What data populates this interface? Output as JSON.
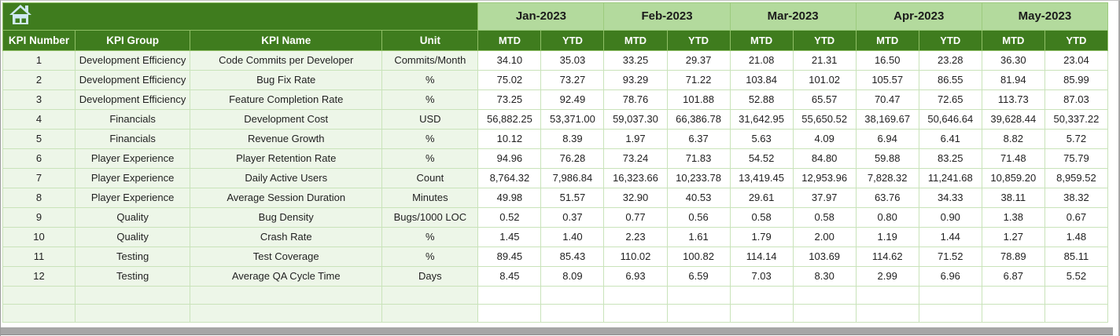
{
  "table": {
    "fixed_headers": [
      "KPI Number",
      "KPI Group",
      "KPI Name",
      "Unit"
    ],
    "month_groups": [
      "Jan-2023",
      "Feb-2023",
      "Mar-2023",
      "Apr-2023",
      "May-2023"
    ],
    "sub_headers": [
      "MTD",
      "YTD"
    ],
    "rows": [
      {
        "kpi_number": "1",
        "kpi_group": "Development Efficiency",
        "kpi_name": "Code Commits per Developer",
        "unit": "Commits/Month",
        "values": [
          "34.10",
          "35.03",
          "33.25",
          "29.37",
          "21.08",
          "21.31",
          "16.50",
          "23.28",
          "36.30",
          "23.04"
        ]
      },
      {
        "kpi_number": "2",
        "kpi_group": "Development Efficiency",
        "kpi_name": "Bug Fix Rate",
        "unit": "%",
        "values": [
          "75.02",
          "73.27",
          "93.29",
          "71.22",
          "103.84",
          "101.02",
          "105.57",
          "86.55",
          "81.94",
          "85.99"
        ]
      },
      {
        "kpi_number": "3",
        "kpi_group": "Development Efficiency",
        "kpi_name": "Feature Completion Rate",
        "unit": "%",
        "values": [
          "73.25",
          "92.49",
          "78.76",
          "101.88",
          "52.88",
          "65.57",
          "70.47",
          "72.65",
          "113.73",
          "87.03"
        ]
      },
      {
        "kpi_number": "4",
        "kpi_group": "Financials",
        "kpi_name": "Development Cost",
        "unit": "USD",
        "values": [
          "56,882.25",
          "53,371.00",
          "59,037.30",
          "66,386.78",
          "31,642.95",
          "55,650.52",
          "38,169.67",
          "50,646.64",
          "39,628.44",
          "50,337.22"
        ]
      },
      {
        "kpi_number": "5",
        "kpi_group": "Financials",
        "kpi_name": "Revenue Growth",
        "unit": "%",
        "values": [
          "10.12",
          "8.39",
          "1.97",
          "6.37",
          "5.63",
          "4.09",
          "6.94",
          "6.41",
          "8.82",
          "5.72"
        ]
      },
      {
        "kpi_number": "6",
        "kpi_group": "Player Experience",
        "kpi_name": "Player Retention Rate",
        "unit": "%",
        "values": [
          "94.96",
          "76.28",
          "73.24",
          "71.83",
          "54.52",
          "84.80",
          "59.88",
          "83.25",
          "71.48",
          "75.79"
        ]
      },
      {
        "kpi_number": "7",
        "kpi_group": "Player Experience",
        "kpi_name": "Daily Active Users",
        "unit": "Count",
        "values": [
          "8,764.32",
          "7,986.84",
          "16,323.66",
          "10,233.78",
          "13,419.45",
          "12,953.96",
          "7,828.32",
          "11,241.68",
          "10,859.20",
          "8,959.52"
        ]
      },
      {
        "kpi_number": "8",
        "kpi_group": "Player Experience",
        "kpi_name": "Average Session Duration",
        "unit": "Minutes",
        "values": [
          "49.98",
          "51.57",
          "32.90",
          "40.53",
          "29.61",
          "37.97",
          "63.76",
          "34.33",
          "38.11",
          "38.32"
        ]
      },
      {
        "kpi_number": "9",
        "kpi_group": "Quality",
        "kpi_name": "Bug Density",
        "unit": "Bugs/1000 LOC",
        "values": [
          "0.52",
          "0.37",
          "0.77",
          "0.56",
          "0.58",
          "0.58",
          "0.80",
          "0.90",
          "1.38",
          "0.67"
        ]
      },
      {
        "kpi_number": "10",
        "kpi_group": "Quality",
        "kpi_name": "Crash Rate",
        "unit": "%",
        "values": [
          "1.45",
          "1.40",
          "2.23",
          "1.61",
          "1.79",
          "2.00",
          "1.19",
          "1.44",
          "1.27",
          "1.48"
        ]
      },
      {
        "kpi_number": "11",
        "kpi_group": "Testing",
        "kpi_name": "Test Coverage",
        "unit": "%",
        "values": [
          "89.45",
          "85.43",
          "110.02",
          "100.82",
          "114.14",
          "103.69",
          "114.62",
          "71.52",
          "78.89",
          "85.11"
        ]
      },
      {
        "kpi_number": "12",
        "kpi_group": "Testing",
        "kpi_name": "Average QA Cycle Time",
        "unit": "Days",
        "values": [
          "8.45",
          "8.09",
          "6.93",
          "6.59",
          "7.03",
          "8.30",
          "2.99",
          "6.96",
          "6.87",
          "5.52"
        ]
      }
    ],
    "empty_row_count": 2
  },
  "colors": {
    "dark_green": "#3f7c1e",
    "band_green": "#b3da9d",
    "row_tint": "#edf6e8",
    "gridline": "#c9e3ba",
    "data_cell": "#ffffff",
    "scrollbar_gray": "#a6a6a6",
    "home_icon_blue": "#cfe9f2"
  }
}
